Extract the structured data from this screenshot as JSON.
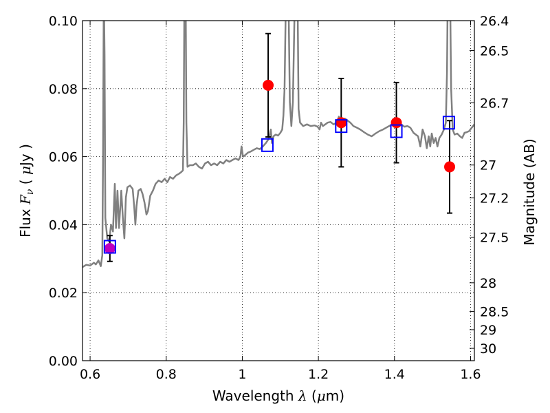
{
  "chart_data": {
    "type": "scatter",
    "xlabel_prefix": "Wavelength  ",
    "xlabel_symbol": "λ",
    "xlabel_unit_open": " (",
    "xlabel_unit_mu": "μ",
    "xlabel_unit_close": "m)",
    "ylabel_prefix": "Flux  ",
    "ylabel_symbol": "F",
    "ylabel_sub": "ν",
    "ylabel_unit_open": "  ( ",
    "ylabel_unit_mu": "μ",
    "ylabel_unit_close": "Jy )",
    "y2label": "Magnitude (AB)",
    "xlim": [
      0.58,
      1.61
    ],
    "ylim": [
      0.0,
      0.1
    ],
    "grid": "dotted",
    "xticks": [
      0.6,
      0.8,
      1.0,
      1.2,
      1.4,
      1.6
    ],
    "xtick_labels": [
      "0.6",
      "0.8",
      "1",
      "1.2",
      "1.4",
      "1.6"
    ],
    "yticks": [
      0.0,
      0.02,
      0.04,
      0.06,
      0.08,
      0.1
    ],
    "ytick_labels": [
      "0.00",
      "0.02",
      "0.04",
      "0.06",
      "0.08",
      "0.10"
    ],
    "y2ticks": [
      26.4,
      26.5,
      26.7,
      27.0,
      27.2,
      27.5,
      28.0,
      28.5,
      29.0,
      30.0
    ],
    "y2tick_labels": [
      "26.4",
      "26.5",
      "26.7",
      "27",
      "27.2",
      "27.5",
      "28",
      "28.5",
      "29",
      "30"
    ],
    "colors": {
      "spectrum": "#808080",
      "model_box": "#0000ff",
      "observed": "#ff0000",
      "observed_first": "#bf00bf",
      "errorbar": "#000000"
    },
    "spectrum": [
      [
        0.58,
        0.0275
      ],
      [
        0.59,
        0.0282
      ],
      [
        0.6,
        0.028
      ],
      [
        0.61,
        0.0288
      ],
      [
        0.615,
        0.0283
      ],
      [
        0.622,
        0.0295
      ],
      [
        0.628,
        0.0278
      ],
      [
        0.632,
        0.031
      ],
      [
        0.634,
        0.06
      ],
      [
        0.636,
        0.11
      ],
      [
        0.638,
        0.09
      ],
      [
        0.64,
        0.042
      ],
      [
        0.645,
        0.036
      ],
      [
        0.65,
        0.035
      ],
      [
        0.655,
        0.04
      ],
      [
        0.66,
        0.038
      ],
      [
        0.665,
        0.052
      ],
      [
        0.668,
        0.039
      ],
      [
        0.672,
        0.05
      ],
      [
        0.676,
        0.039
      ],
      [
        0.682,
        0.05
      ],
      [
        0.686,
        0.042
      ],
      [
        0.69,
        0.036
      ],
      [
        0.694,
        0.048
      ],
      [
        0.698,
        0.051
      ],
      [
        0.705,
        0.0515
      ],
      [
        0.712,
        0.0505
      ],
      [
        0.716,
        0.045
      ],
      [
        0.719,
        0.04
      ],
      [
        0.722,
        0.0455
      ],
      [
        0.727,
        0.05
      ],
      [
        0.733,
        0.0505
      ],
      [
        0.738,
        0.049
      ],
      [
        0.743,
        0.0465
      ],
      [
        0.748,
        0.043
      ],
      [
        0.752,
        0.044
      ],
      [
        0.758,
        0.0485
      ],
      [
        0.765,
        0.05
      ],
      [
        0.772,
        0.052
      ],
      [
        0.78,
        0.053
      ],
      [
        0.788,
        0.0525
      ],
      [
        0.796,
        0.0535
      ],
      [
        0.803,
        0.0525
      ],
      [
        0.81,
        0.054
      ],
      [
        0.818,
        0.0535
      ],
      [
        0.826,
        0.0545
      ],
      [
        0.834,
        0.055
      ],
      [
        0.84,
        0.0555
      ],
      [
        0.844,
        0.056
      ],
      [
        0.846,
        0.07
      ],
      [
        0.848,
        0.11
      ],
      [
        0.851,
        0.11
      ],
      [
        0.853,
        0.07
      ],
      [
        0.856,
        0.057
      ],
      [
        0.862,
        0.0575
      ],
      [
        0.87,
        0.0575
      ],
      [
        0.878,
        0.058
      ],
      [
        0.886,
        0.057
      ],
      [
        0.894,
        0.0565
      ],
      [
        0.902,
        0.058
      ],
      [
        0.91,
        0.0585
      ],
      [
        0.918,
        0.0575
      ],
      [
        0.926,
        0.058
      ],
      [
        0.934,
        0.0575
      ],
      [
        0.942,
        0.0585
      ],
      [
        0.95,
        0.058
      ],
      [
        0.958,
        0.059
      ],
      [
        0.966,
        0.0585
      ],
      [
        0.974,
        0.059
      ],
      [
        0.982,
        0.0595
      ],
      [
        0.99,
        0.059
      ],
      [
        0.995,
        0.06
      ],
      [
        0.998,
        0.063
      ],
      [
        1.002,
        0.06
      ],
      [
        1.008,
        0.0605
      ],
      [
        1.015,
        0.0612
      ],
      [
        1.022,
        0.0615
      ],
      [
        1.03,
        0.062
      ],
      [
        1.038,
        0.0625
      ],
      [
        1.046,
        0.0622
      ],
      [
        1.054,
        0.063
      ],
      [
        1.062,
        0.064
      ],
      [
        1.068,
        0.065
      ],
      [
        1.072,
        0.0665
      ],
      [
        1.075,
        0.068
      ],
      [
        1.078,
        0.064
      ],
      [
        1.082,
        0.066
      ],
      [
        1.088,
        0.0665
      ],
      [
        1.094,
        0.0662
      ],
      [
        1.1,
        0.067
      ],
      [
        1.105,
        0.068
      ],
      [
        1.108,
        0.072
      ],
      [
        1.111,
        0.08
      ],
      [
        1.113,
        0.095
      ],
      [
        1.115,
        0.11
      ],
      [
        1.121,
        0.11
      ],
      [
        1.125,
        0.076
      ],
      [
        1.129,
        0.069
      ],
      [
        1.133,
        0.076
      ],
      [
        1.137,
        0.1
      ],
      [
        1.14,
        0.11
      ],
      [
        1.145,
        0.11
      ],
      [
        1.148,
        0.074
      ],
      [
        1.152,
        0.07
      ],
      [
        1.16,
        0.069
      ],
      [
        1.17,
        0.0695
      ],
      [
        1.18,
        0.069
      ],
      [
        1.19,
        0.0692
      ],
      [
        1.198,
        0.0688
      ],
      [
        1.203,
        0.068
      ],
      [
        1.207,
        0.07
      ],
      [
        1.212,
        0.069
      ],
      [
        1.218,
        0.0695
      ],
      [
        1.224,
        0.07
      ],
      [
        1.232,
        0.0702
      ],
      [
        1.24,
        0.0695
      ],
      [
        1.248,
        0.07
      ],
      [
        1.254,
        0.0718
      ],
      [
        1.258,
        0.07
      ],
      [
        1.264,
        0.071
      ],
      [
        1.27,
        0.0712
      ],
      [
        1.278,
        0.0705
      ],
      [
        1.284,
        0.07
      ],
      [
        1.292,
        0.069
      ],
      [
        1.3,
        0.0686
      ],
      [
        1.31,
        0.068
      ],
      [
        1.32,
        0.0672
      ],
      [
        1.33,
        0.0665
      ],
      [
        1.34,
        0.066
      ],
      [
        1.35,
        0.0668
      ],
      [
        1.36,
        0.0675
      ],
      [
        1.37,
        0.068
      ],
      [
        1.378,
        0.0685
      ],
      [
        1.386,
        0.069
      ],
      [
        1.394,
        0.0695
      ],
      [
        1.402,
        0.07
      ],
      [
        1.41,
        0.0705
      ],
      [
        1.418,
        0.0695
      ],
      [
        1.426,
        0.0688
      ],
      [
        1.434,
        0.069
      ],
      [
        1.442,
        0.0685
      ],
      [
        1.45,
        0.067
      ],
      [
        1.456,
        0.0665
      ],
      [
        1.462,
        0.066
      ],
      [
        1.468,
        0.063
      ],
      [
        1.474,
        0.068
      ],
      [
        1.48,
        0.066
      ],
      [
        1.485,
        0.0625
      ],
      [
        1.49,
        0.066
      ],
      [
        1.494,
        0.063
      ],
      [
        1.498,
        0.0668
      ],
      [
        1.503,
        0.064
      ],
      [
        1.508,
        0.0655
      ],
      [
        1.513,
        0.063
      ],
      [
        1.518,
        0.0655
      ],
      [
        1.524,
        0.0665
      ],
      [
        1.53,
        0.068
      ],
      [
        1.535,
        0.07
      ],
      [
        1.538,
        0.085
      ],
      [
        1.54,
        0.11
      ],
      [
        1.546,
        0.11
      ],
      [
        1.549,
        0.08
      ],
      [
        1.553,
        0.068
      ],
      [
        1.558,
        0.0665
      ],
      [
        1.565,
        0.0668
      ],
      [
        1.572,
        0.066
      ],
      [
        1.578,
        0.0655
      ],
      [
        1.584,
        0.067
      ],
      [
        1.59,
        0.0672
      ],
      [
        1.596,
        0.0675
      ],
      [
        1.603,
        0.0685
      ],
      [
        1.61,
        0.0695
      ]
    ],
    "model_points": [
      {
        "x": 0.652,
        "y": 0.0335
      },
      {
        "x": 1.066,
        "y": 0.0634
      },
      {
        "x": 1.26,
        "y": 0.069
      },
      {
        "x": 1.405,
        "y": 0.0675
      },
      {
        "x": 1.543,
        "y": 0.07
      }
    ],
    "observed_points": [
      {
        "x": 0.652,
        "y": 0.033,
        "yerr": 0.0038
      },
      {
        "x": 1.068,
        "y": 0.081,
        "yerr": 0.0152
      },
      {
        "x": 1.26,
        "y": 0.07,
        "yerr": 0.013
      },
      {
        "x": 1.405,
        "y": 0.07,
        "yerr": 0.0118
      },
      {
        "x": 1.545,
        "y": 0.057,
        "yerr": 0.0136
      }
    ]
  }
}
